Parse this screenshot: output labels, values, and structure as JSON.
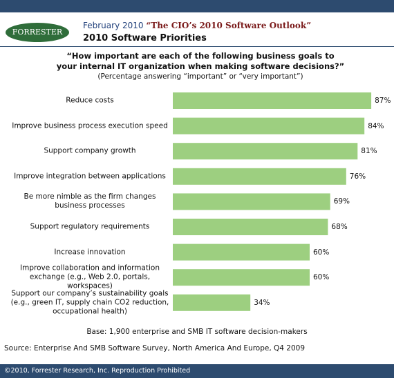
{
  "chart_data": {
    "type": "bar",
    "orientation": "horizontal",
    "logo": "FORRESTER",
    "report_date": "February 2010",
    "report_title": "“The CIO’s 2010 Software Outlook”",
    "title": "2010 Software Priorities",
    "subtitle": "“How important are each of the following business goals to your internal IT organization when making software decisions?”",
    "note": "(Percentage answering “important” or “very important”)",
    "categories": [
      "Reduce costs",
      "Improve business process execution speed",
      "Support company growth",
      "Improve integration between applications",
      "Be more nimble as the firm changes business processes",
      "Support regulatory requirements",
      "Increase innovation",
      "Improve collaboration and information exchange (e.g., Web 2.0, portals, workspaces)",
      "Support our company’s sustainability goals (e.g., green IT, supply chain CO2 reduction, occupational health)"
    ],
    "values": [
      87,
      84,
      81,
      76,
      69,
      68,
      60,
      60,
      34
    ],
    "value_labels": [
      "87%",
      "84%",
      "81%",
      "76%",
      "69%",
      "68%",
      "60%",
      "60%",
      "34%"
    ],
    "color": "#9dcf80",
    "base": "Base: 1,900 enterprise and SMB IT software decision-makers",
    "source": "Source: Enterprise And SMB Software Survey, North America And Europe, Q4 2009",
    "footer": "©2010, Forrester Research, Inc. Reproduction Prohibited"
  }
}
